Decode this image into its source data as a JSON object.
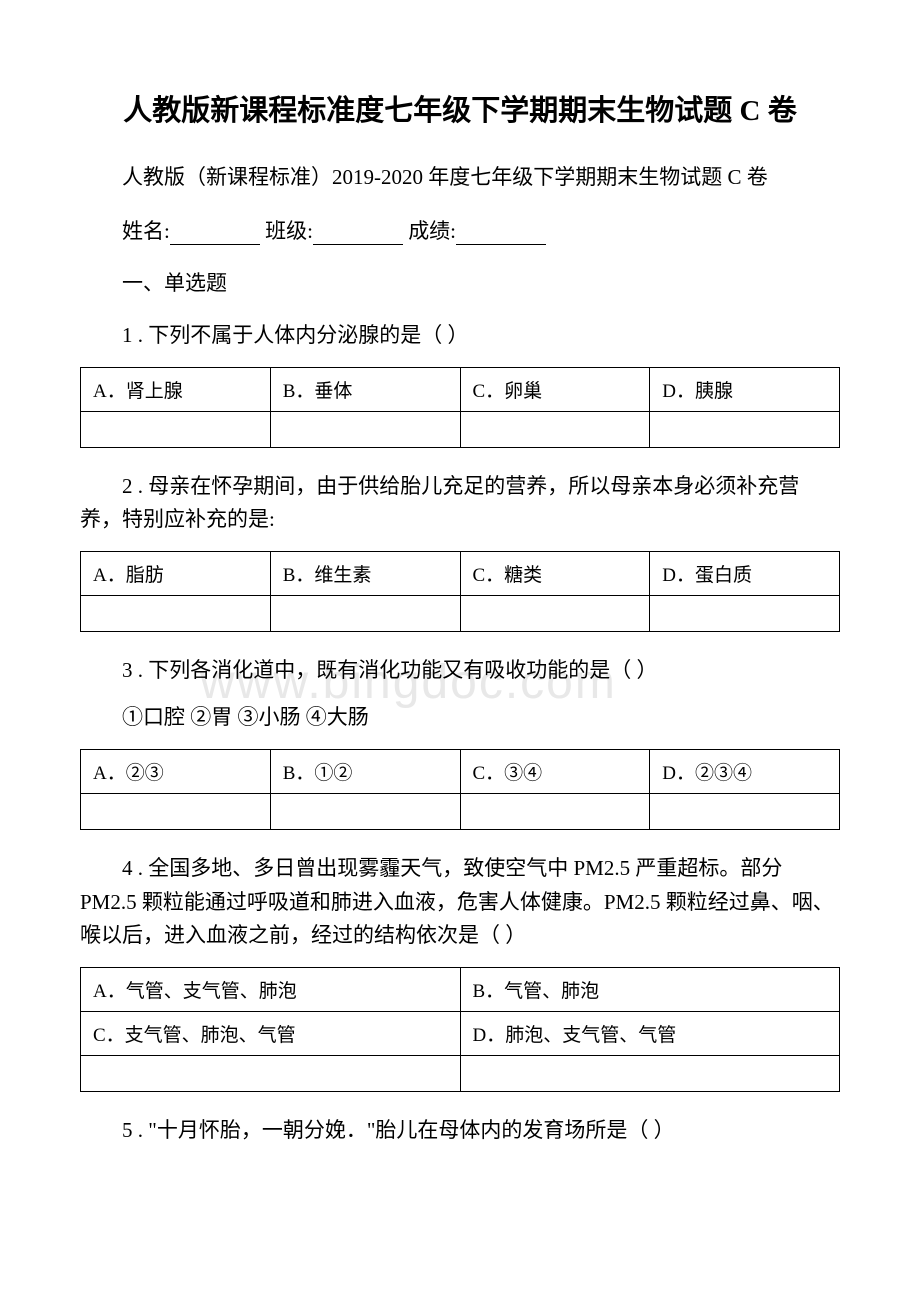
{
  "title": "人教版新课程标准度七年级下学期期末生物试题 C 卷",
  "subtitle": "人教版（新课程标准）2019-2020 年度七年级下学期期末生物试题 C 卷",
  "info": {
    "name_label": "姓名:",
    "class_label": "班级:",
    "score_label": "成绩:"
  },
  "section": "一、单选题",
  "questions": [
    {
      "text": "1 . 下列不属于人体内分泌腺的是（ ）",
      "options_layout": "4col",
      "options": [
        "A．肾上腺",
        "B．垂体",
        "C．卵巢",
        "D．胰腺"
      ]
    },
    {
      "text": "2 . 母亲在怀孕期间，由于供给胎儿充足的营养，所以母亲本身必须补充营养，特别应补充的是:",
      "options_layout": "4col",
      "options": [
        "A．脂肪",
        "B．维生素",
        "C．糖类",
        "D．蛋白质"
      ]
    },
    {
      "text": "3 . 下列各消化道中，既有消化功能又有吸收功能的是（ ）",
      "subtext": "①口腔 ②胃  ③小肠  ④大肠",
      "options_layout": "4col",
      "options": [
        "A．②③",
        "B．①②",
        "C．③④",
        "D．②③④"
      ]
    },
    {
      "text": "4 . 全国多地、多日曾出现雾霾天气，致使空气中 PM2.5 严重超标。部分 PM2.5 颗粒能通过呼吸道和肺进入血液，危害人体健康。PM2.5 颗粒经过鼻、咽、喉以后，进入血液之前，经过的结构依次是（ ）",
      "options_layout": "2col",
      "options": [
        "A．气管、支气管、肺泡",
        "B．气管、肺泡",
        "C．支气管、肺泡、气管",
        "D．肺泡、支气管、气管"
      ]
    },
    {
      "text": "5 . \"十月怀胎，一朝分娩．\"胎儿在母体内的发育场所是（ ）"
    }
  ],
  "watermark": "www.bingdoc.com",
  "styles": {
    "body_width": 920,
    "body_height": 1302,
    "background_color": "#ffffff",
    "text_color": "#000000",
    "title_fontsize": 29,
    "body_fontsize": 21,
    "table_fontsize": 19,
    "watermark_color": "#e8e8e8",
    "border_color": "#000000"
  }
}
